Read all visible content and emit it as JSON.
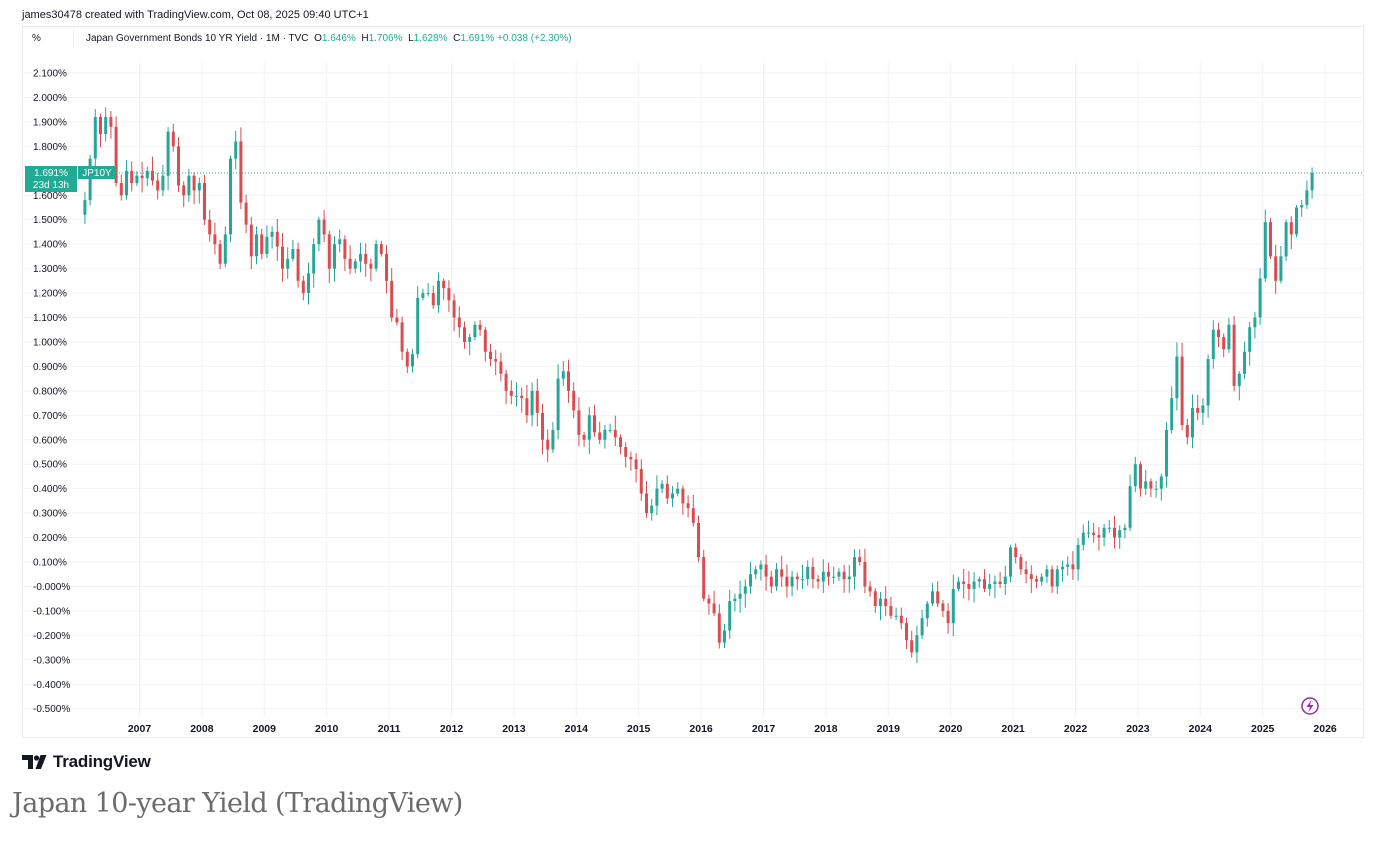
{
  "header": {
    "credit": "james30478 created with TradingView.com, Oct 08, 2025 09:40 UTC+1"
  },
  "legend": {
    "unit": "%",
    "symbol": "Japan Government Bonds 10 YR Yield · 1M · TVC",
    "open_label": "O",
    "open": "1.646%",
    "high_label": "H",
    "high": "1.706%",
    "low_label": "L",
    "low": "1.628%",
    "close_label": "C",
    "close": "1.691%",
    "change": "+0.038 (+2.30%)"
  },
  "price_tag": {
    "value": "1.691%",
    "countdown": "23d 13h",
    "ticker": "JP10Y"
  },
  "brand": "TradingView",
  "caption": "Japan 10-year Yield (TradingView)",
  "colors": {
    "up": "#26a69a",
    "down": "#d94c50",
    "price_line": "#22ab94",
    "grid": "#f0f2f5"
  },
  "chart_data": {
    "type": "candlestick",
    "interval": "1M",
    "y_unit": "%",
    "ylim": [
      -0.54,
      2.16
    ],
    "y_ticks": [
      "2.100%",
      "2.000%",
      "1.900%",
      "1.800%",
      "1.600%",
      "1.500%",
      "1.400%",
      "1.300%",
      "1.200%",
      "1.100%",
      "1.000%",
      "0.900%",
      "0.800%",
      "0.700%",
      "0.600%",
      "0.500%",
      "0.400%",
      "0.300%",
      "0.200%",
      "0.100%",
      "-0.000%",
      "-0.100%",
      "-0.200%",
      "-0.300%",
      "-0.400%",
      "-0.500%"
    ],
    "x_ticks": [
      "2007",
      "2008",
      "2009",
      "2010",
      "2011",
      "2012",
      "2013",
      "2014",
      "2015",
      "2016",
      "2017",
      "2018",
      "2019",
      "2020",
      "2021",
      "2022",
      "2023",
      "2024",
      "2025",
      "2026"
    ],
    "x_start": "2006-02",
    "last_close": 1.691,
    "grid": true,
    "monthly_closes": [
      1.58,
      1.75,
      1.92,
      1.85,
      1.92,
      1.88,
      1.65,
      1.6,
      1.7,
      1.65,
      1.68,
      1.67,
      1.7,
      1.66,
      1.62,
      1.68,
      1.86,
      1.8,
      1.64,
      1.6,
      1.68,
      1.62,
      1.65,
      1.5,
      1.44,
      1.4,
      1.32,
      1.44,
      1.75,
      1.82,
      1.57,
      1.48,
      1.35,
      1.44,
      1.36,
      1.43,
      1.45,
      1.39,
      1.3,
      1.34,
      1.38,
      1.25,
      1.2,
      1.28,
      1.4,
      1.5,
      1.44,
      1.3,
      1.4,
      1.42,
      1.34,
      1.3,
      1.33,
      1.36,
      1.32,
      1.3,
      1.4,
      1.36,
      1.25,
      1.1,
      1.08,
      0.96,
      0.9,
      0.95,
      1.18,
      1.2,
      1.2,
      1.15,
      1.25,
      1.22,
      1.17,
      1.1,
      1.06,
      1.0,
      1.02,
      1.07,
      1.05,
      0.96,
      0.93,
      0.92,
      0.87,
      0.8,
      0.78,
      0.78,
      0.77,
      0.7,
      0.8,
      0.71,
      0.6,
      0.56,
      0.64,
      0.85,
      0.88,
      0.8,
      0.72,
      0.62,
      0.6,
      0.7,
      0.63,
      0.6,
      0.64,
      0.64,
      0.61,
      0.57,
      0.53,
      0.52,
      0.48,
      0.38,
      0.3,
      0.33,
      0.4,
      0.42,
      0.36,
      0.38,
      0.4,
      0.34,
      0.32,
      0.26,
      0.12,
      -0.05,
      -0.07,
      -0.11,
      -0.23,
      -0.18,
      -0.06,
      -0.05,
      -0.03,
      0.0,
      0.05,
      0.07,
      0.09,
      0.04,
      0.0,
      0.07,
      0.04,
      0.0,
      0.04,
      0.03,
      0.03,
      0.08,
      0.03,
      0.02,
      0.06,
      0.04,
      0.04,
      0.06,
      0.03,
      0.04,
      0.12,
      0.1,
      0.0,
      -0.02,
      -0.08,
      -0.05,
      -0.08,
      -0.12,
      -0.12,
      -0.15,
      -0.22,
      -0.27,
      -0.2,
      -0.13,
      -0.07,
      -0.02,
      -0.07,
      -0.1,
      -0.15,
      -0.01,
      0.02,
      0.01,
      -0.01,
      0.02,
      0.03,
      -0.01,
      0.01,
      0.02,
      0.01,
      0.04,
      0.16,
      0.12,
      0.07,
      0.05,
      0.03,
      0.02,
      0.04,
      0.07,
      0.0,
      0.07,
      0.08,
      0.09,
      0.07,
      0.17,
      0.22,
      0.22,
      0.21,
      0.2,
      0.24,
      0.24,
      0.2,
      0.23,
      0.24,
      0.41,
      0.5,
      0.4,
      0.43,
      0.4,
      0.4,
      0.45,
      0.64,
      0.77,
      0.94,
      0.66,
      0.61,
      0.73,
      0.71,
      0.74,
      0.93,
      1.05,
      1.02,
      0.97,
      1.07,
      0.82,
      0.87,
      0.96,
      1.06,
      1.1,
      1.26,
      1.49,
      1.35,
      1.25,
      1.35,
      1.49,
      1.44,
      1.55,
      1.56,
      1.62,
      1.691
    ]
  }
}
